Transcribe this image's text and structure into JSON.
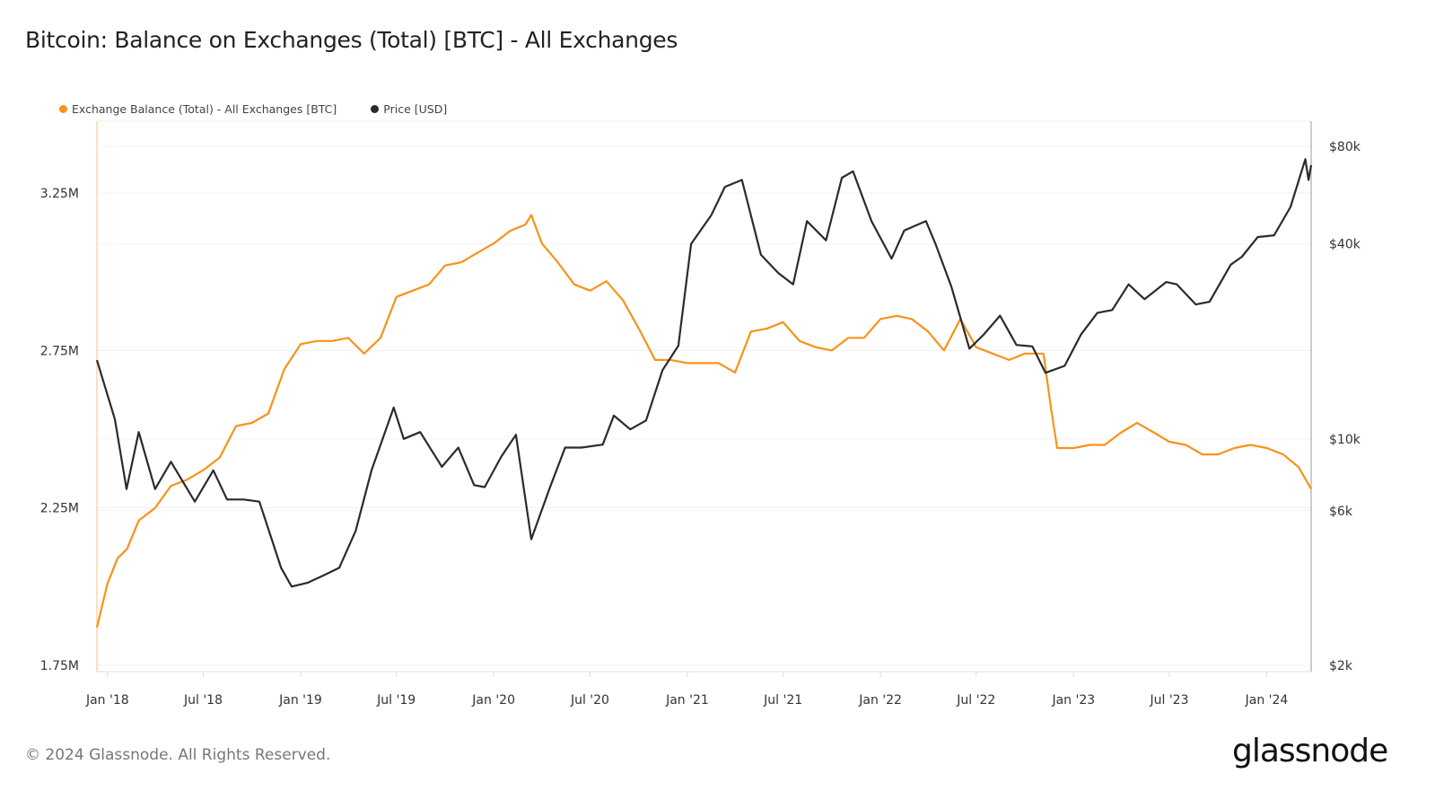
{
  "title": "Bitcoin: Balance on Exchanges (Total) [BTC] - All Exchanges",
  "footer": {
    "copyright": "© 2024 Glassnode. All Rights Reserved.",
    "logo": "glassnode"
  },
  "chart_data": {
    "type": "line",
    "title": "Bitcoin: Balance on Exchanges (Total) [BTC] - All Exchanges",
    "legend_position": "top-left",
    "grid": true,
    "xlim": [
      "2017-12-12",
      "2024-03-25"
    ],
    "x_ticks": [
      {
        "date": "2018-01-01",
        "label": "Jan '18"
      },
      {
        "date": "2018-07-01",
        "label": "Jul '18"
      },
      {
        "date": "2019-01-01",
        "label": "Jan '19"
      },
      {
        "date": "2019-07-01",
        "label": "Jul '19"
      },
      {
        "date": "2020-01-01",
        "label": "Jan '20"
      },
      {
        "date": "2020-07-01",
        "label": "Jul '20"
      },
      {
        "date": "2021-01-01",
        "label": "Jan '21"
      },
      {
        "date": "2021-07-01",
        "label": "Jul '21"
      },
      {
        "date": "2022-01-01",
        "label": "Jan '22"
      },
      {
        "date": "2022-07-01",
        "label": "Jul '22"
      },
      {
        "date": "2023-01-01",
        "label": "Jan '23"
      },
      {
        "date": "2023-07-01",
        "label": "Jul '23"
      },
      {
        "date": "2024-01-01",
        "label": "Jan '24"
      }
    ],
    "y_left": {
      "scale": "linear",
      "ylim": [
        1.75,
        3.495
      ],
      "unit": "M BTC",
      "ticks": [
        {
          "v": 1.75,
          "label": "1.75M"
        },
        {
          "v": 2.25,
          "label": "2.25M"
        },
        {
          "v": 2.75,
          "label": "2.75M"
        },
        {
          "v": 3.25,
          "label": "3.25M"
        }
      ]
    },
    "y_right": {
      "scale": "log",
      "ylim": [
        2000,
        88000
      ],
      "ticks": [
        {
          "v": 2000,
          "label": "$2k"
        },
        {
          "v": 6000,
          "label": "$6k"
        },
        {
          "v": 10000,
          "label": "$10k"
        },
        {
          "v": 40000,
          "label": "$40k"
        },
        {
          "v": 80000,
          "label": "$80k"
        }
      ]
    },
    "series": [
      {
        "name": "Exchange Balance (Total) - All Exchanges [BTC]",
        "color": "#f7931a",
        "axis": "left",
        "x": [
          "2017-12-12",
          "2018-01-01",
          "2018-01-20",
          "2018-02-07",
          "2018-03-01",
          "2018-04-01",
          "2018-05-01",
          "2018-06-01",
          "2018-07-01",
          "2018-08-01",
          "2018-09-01",
          "2018-10-01",
          "2018-11-01",
          "2018-12-01",
          "2019-01-01",
          "2019-02-01",
          "2019-03-01",
          "2019-04-01",
          "2019-05-01",
          "2019-06-01",
          "2019-07-01",
          "2019-08-01",
          "2019-09-01",
          "2019-10-01",
          "2019-11-01",
          "2019-12-01",
          "2020-01-01",
          "2020-02-01",
          "2020-03-01",
          "2020-03-12",
          "2020-04-01",
          "2020-05-01",
          "2020-06-01",
          "2020-07-01",
          "2020-08-01",
          "2020-09-01",
          "2020-10-01",
          "2020-11-01",
          "2020-12-01",
          "2021-01-01",
          "2021-02-01",
          "2021-03-01",
          "2021-04-01",
          "2021-05-01",
          "2021-06-01",
          "2021-07-01",
          "2021-08-01",
          "2021-09-01",
          "2021-10-01",
          "2021-11-01",
          "2021-12-01",
          "2022-01-01",
          "2022-02-01",
          "2022-03-01",
          "2022-04-01",
          "2022-05-01",
          "2022-06-01",
          "2022-07-01",
          "2022-08-01",
          "2022-09-01",
          "2022-10-01",
          "2022-11-05",
          "2022-11-20",
          "2022-12-01",
          "2023-01-01",
          "2023-02-01",
          "2023-03-01",
          "2023-04-01",
          "2023-05-01",
          "2023-06-01",
          "2023-07-01",
          "2023-08-01",
          "2023-09-01",
          "2023-10-01",
          "2023-11-01",
          "2023-12-01",
          "2024-01-01",
          "2024-02-01",
          "2024-03-01",
          "2024-03-25"
        ],
        "values": [
          1.87,
          2.01,
          2.09,
          2.12,
          2.21,
          2.25,
          2.32,
          2.34,
          2.37,
          2.41,
          2.51,
          2.52,
          2.55,
          2.69,
          2.77,
          2.78,
          2.78,
          2.79,
          2.74,
          2.79,
          2.92,
          2.94,
          2.96,
          3.02,
          3.03,
          3.06,
          3.09,
          3.13,
          3.15,
          3.18,
          3.09,
          3.03,
          2.96,
          2.94,
          2.97,
          2.91,
          2.82,
          2.72,
          2.72,
          2.71,
          2.71,
          2.71,
          2.68,
          2.81,
          2.82,
          2.84,
          2.78,
          2.76,
          2.75,
          2.79,
          2.79,
          2.85,
          2.86,
          2.85,
          2.81,
          2.75,
          2.85,
          2.76,
          2.74,
          2.72,
          2.74,
          2.74,
          2.56,
          2.44,
          2.44,
          2.45,
          2.45,
          2.49,
          2.52,
          2.49,
          2.46,
          2.45,
          2.42,
          2.42,
          2.44,
          2.45,
          2.44,
          2.42,
          2.38,
          2.31
        ]
      },
      {
        "name": "Price [USD]",
        "color": "#2b2b2b",
        "axis": "right",
        "x": [
          "2017-12-12",
          "2018-01-15",
          "2018-02-06",
          "2018-03-01",
          "2018-04-01",
          "2018-05-01",
          "2018-06-15",
          "2018-07-20",
          "2018-08-15",
          "2018-09-15",
          "2018-10-15",
          "2018-11-25",
          "2018-12-15",
          "2019-01-15",
          "2019-02-15",
          "2019-03-15",
          "2019-04-15",
          "2019-05-15",
          "2019-06-26",
          "2019-07-15",
          "2019-08-15",
          "2019-09-25",
          "2019-10-26",
          "2019-11-25",
          "2019-12-15",
          "2020-01-15",
          "2020-02-12",
          "2020-03-12",
          "2020-04-15",
          "2020-05-15",
          "2020-06-15",
          "2020-07-25",
          "2020-08-15",
          "2020-09-15",
          "2020-10-15",
          "2020-11-15",
          "2020-12-15",
          "2021-01-08",
          "2021-02-15",
          "2021-03-13",
          "2021-04-14",
          "2021-05-20",
          "2021-06-22",
          "2021-07-20",
          "2021-08-15",
          "2021-09-20",
          "2021-10-20",
          "2021-11-10",
          "2021-12-15",
          "2022-01-22",
          "2022-02-15",
          "2022-03-28",
          "2022-04-15",
          "2022-05-15",
          "2022-06-18",
          "2022-07-15",
          "2022-08-15",
          "2022-09-15",
          "2022-10-15",
          "2022-11-09",
          "2022-12-15",
          "2023-01-15",
          "2023-02-15",
          "2023-03-15",
          "2023-04-15",
          "2023-05-15",
          "2023-06-25",
          "2023-07-15",
          "2023-08-20",
          "2023-09-15",
          "2023-10-25",
          "2023-11-15",
          "2023-12-15",
          "2024-01-15",
          "2024-02-15",
          "2024-03-14",
          "2024-03-20",
          "2024-03-25"
        ],
        "values": [
          17500,
          11500,
          7000,
          10500,
          7000,
          8500,
          6400,
          8000,
          6500,
          6500,
          6400,
          4000,
          3500,
          3600,
          3800,
          4000,
          5200,
          8000,
          12500,
          10000,
          10500,
          8200,
          9400,
          7200,
          7100,
          8800,
          10300,
          4900,
          7000,
          9400,
          9400,
          9600,
          11800,
          10700,
          11400,
          16300,
          19400,
          40000,
          49000,
          60000,
          63000,
          37000,
          32500,
          30000,
          47000,
          41000,
          64000,
          67000,
          47000,
          36000,
          44000,
          47000,
          40000,
          29500,
          19000,
          21000,
          24000,
          19500,
          19300,
          16000,
          16800,
          21000,
          24500,
          25000,
          30000,
          27000,
          30500,
          30000,
          26000,
          26500,
          34500,
          36500,
          42000,
          42500,
          52000,
          73000,
          63000,
          70000
        ]
      }
    ]
  }
}
